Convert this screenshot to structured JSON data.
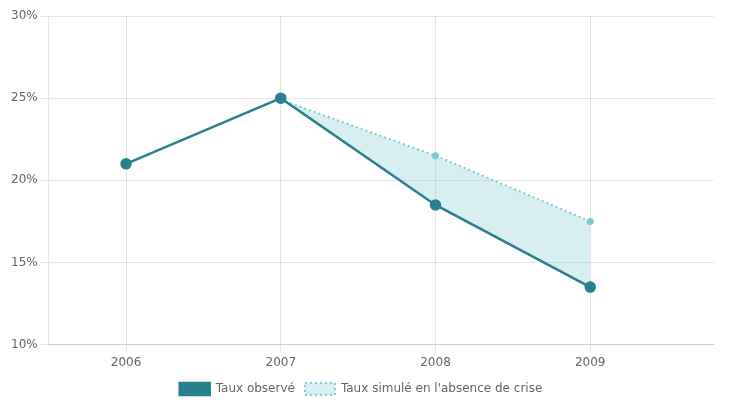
{
  "chart_data": {
    "type": "line",
    "xlim": [
      2005.5,
      2009.8
    ],
    "xticks": [
      2006,
      2007,
      2008,
      2009
    ],
    "ylim": [
      0.1,
      0.3
    ],
    "yticks": [
      {
        "value": 0.1,
        "label": "10%"
      },
      {
        "value": 0.15,
        "label": "15%"
      },
      {
        "value": 0.2,
        "label": "20%"
      },
      {
        "value": 0.25,
        "label": "25%"
      },
      {
        "value": 0.3,
        "label": "30%"
      }
    ],
    "grid": true,
    "legend": "bottom",
    "series": [
      {
        "name": "Taux observé",
        "color": "#2a7f8f",
        "x": [
          2006,
          2007,
          2008,
          2009
        ],
        "values": [
          0.21,
          0.25,
          0.185,
          0.135
        ],
        "line_style": "solid",
        "marker": "circle"
      },
      {
        "name": "Taux simulé en l'absence de crise",
        "color": "#7ecad4",
        "x": [
          2007,
          2008,
          2009
        ],
        "values": [
          0.249,
          0.215,
          0.175
        ],
        "line_style": "dotted",
        "marker": "circle"
      }
    ]
  }
}
